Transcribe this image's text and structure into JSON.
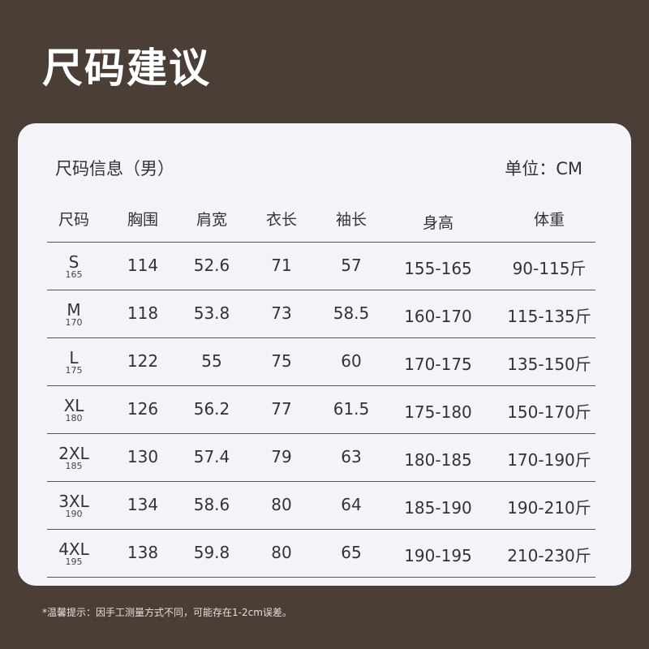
{
  "title": "尺码建议",
  "info_label": "尺码信息（男）",
  "unit_label": "单位：CM",
  "headers": [
    "尺码",
    "胸围",
    "肩宽",
    "衣长",
    "袖长",
    "身高",
    "体重"
  ],
  "rows": [
    {
      "size": "S",
      "ref": "165",
      "chest": "114",
      "shoulder": "52.6",
      "length": "71",
      "sleeve": "57",
      "height": "155-165",
      "weight": "90-115斤"
    },
    {
      "size": "M",
      "ref": "170",
      "chest": "118",
      "shoulder": "53.8",
      "length": "73",
      "sleeve": "58.5",
      "height": "160-170",
      "weight": "115-135斤"
    },
    {
      "size": "L",
      "ref": "175",
      "chest": "122",
      "shoulder": "55",
      "length": "75",
      "sleeve": "60",
      "height": "170-175",
      "weight": "135-150斤"
    },
    {
      "size": "XL",
      "ref": "180",
      "chest": "126",
      "shoulder": "56.2",
      "length": "77",
      "sleeve": "61.5",
      "height": "175-180",
      "weight": "150-170斤"
    },
    {
      "size": "2XL",
      "ref": "185",
      "chest": "130",
      "shoulder": "57.4",
      "length": "79",
      "sleeve": "63",
      "height": "180-185",
      "weight": "170-190斤"
    },
    {
      "size": "3XL",
      "ref": "190",
      "chest": "134",
      "shoulder": "58.6",
      "length": "80",
      "sleeve": "64",
      "height": "185-190",
      "weight": "190-210斤"
    },
    {
      "size": "4XL",
      "ref": "195",
      "chest": "138",
      "shoulder": "59.8",
      "length": "80",
      "sleeve": "65",
      "height": "190-195",
      "weight": "210-230斤"
    }
  ],
  "note": "*温馨提示：因手工测量方式不同，可能存在1-2cm误差。"
}
